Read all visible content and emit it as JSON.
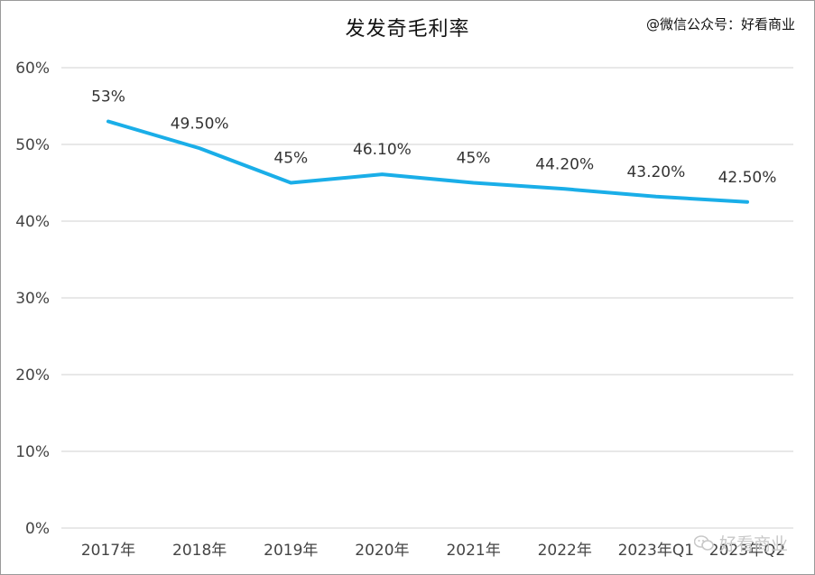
{
  "title": "发发奇毛利率",
  "credit": "@微信公众号：好看商业",
  "watermark": "好看商业",
  "colors": {
    "line": "#1aaee8",
    "grid": "#d9d9d9",
    "text": "#333333"
  },
  "chart_data": {
    "type": "line",
    "title": "发发奇毛利率",
    "categories": [
      "2017年",
      "2018年",
      "2019年",
      "2020年",
      "2021年",
      "2022年",
      "2023年Q1",
      "2023年Q2"
    ],
    "values": [
      53,
      49.5,
      45,
      46.1,
      45,
      44.2,
      43.2,
      42.5
    ],
    "data_labels": [
      "53%",
      "49.50%",
      "45%",
      "46.10%",
      "45%",
      "44.20%",
      "43.20%",
      "42.50%"
    ],
    "yticks": [
      "0%",
      "10%",
      "20%",
      "30%",
      "40%",
      "50%",
      "60%"
    ],
    "ylim": [
      0,
      60
    ],
    "grid": true,
    "legend": false
  }
}
